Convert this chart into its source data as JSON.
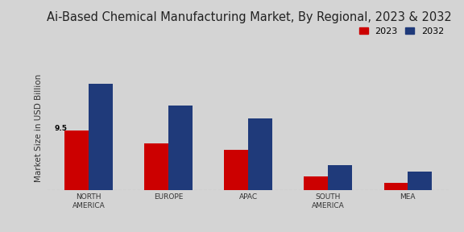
{
  "title": "Ai-Based Chemical Manufacturing Market, By Regional, 2023 & 2032",
  "ylabel": "Market Size in USD Billion",
  "categories": [
    "NORTH\nAMERICA",
    "EUROPE",
    "APAC",
    "SOUTH\nAMERICA",
    "MEA"
  ],
  "values_2023": [
    9.5,
    7.5,
    6.5,
    2.2,
    1.2
  ],
  "values_2032": [
    17.0,
    13.5,
    11.5,
    4.0,
    3.0
  ],
  "color_2023": "#cc0000",
  "color_2032": "#1f3a7a",
  "annotation_2023_0": "9.5",
  "background_color": "#d4d4d4",
  "legend_labels": [
    "2023",
    "2032"
  ],
  "bar_width": 0.3,
  "ylim": [
    0,
    20
  ],
  "title_fontsize": 10.5,
  "axis_label_fontsize": 7.5,
  "tick_fontsize": 6.5,
  "legend_fontsize": 8
}
